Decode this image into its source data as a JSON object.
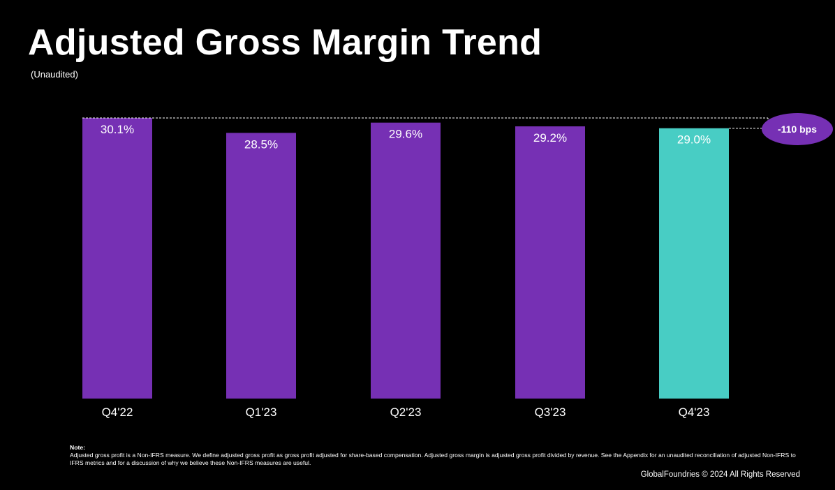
{
  "page": {
    "title": "Adjusted Gross Margin Trend",
    "subtitle": "(Unaudited)",
    "note_heading": "Note:",
    "note_text": "Adjusted gross profit is a Non-IFRS measure. We define adjusted gross profit as gross profit adjusted for share-based compensation. Adjusted gross margin is adjusted gross profit divided by revenue. See the Appendix for an unaudited reconciliation of adjusted Non-IFRS to IFRS metrics and for a discussion of why we believe these Non-IFRS measures are useful.",
    "footer": "GlobalFoundries © 2024 All Rights Reserved"
  },
  "colors": {
    "background": "#000000",
    "bar_primary": "#7630b4",
    "bar_highlight": "#48cdc4",
    "text": "#ffffff",
    "callout": "#7630b4"
  },
  "chart_data": {
    "type": "bar",
    "title": "Adjusted Gross Margin Trend",
    "categories": [
      "Q4'22",
      "Q1'23",
      "Q2'23",
      "Q3'23",
      "Q4'23"
    ],
    "values": [
      30.1,
      28.5,
      29.6,
      29.2,
      29.0
    ],
    "value_labels": [
      "30.1%",
      "28.5%",
      "29.6%",
      "29.2%",
      "29.0%"
    ],
    "highlight_index": 4,
    "unit": "%",
    "grid": false,
    "legend": "none",
    "annotation": {
      "text": "-110 bps",
      "from_category": "Q4'22",
      "to_category": "Q4'23"
    }
  }
}
